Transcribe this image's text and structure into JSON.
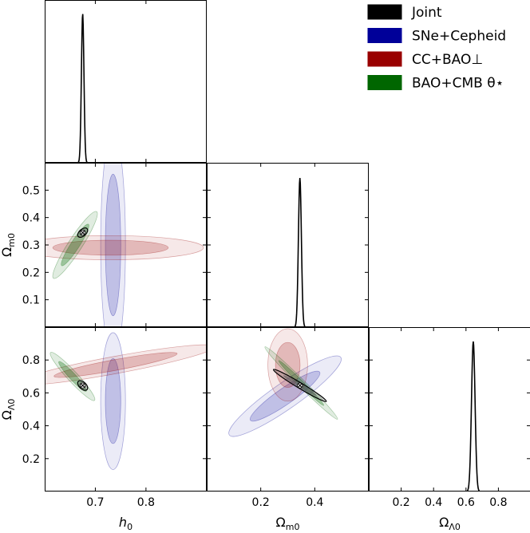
{
  "chart_data": {
    "type": "corner",
    "parameters": [
      "h0",
      "Ωm0",
      "ΩΛ0"
    ],
    "parameter_labels": {
      "h0": {
        "base": "h",
        "sub": "0"
      },
      "Om": {
        "base": "Ω",
        "sub": "m0"
      },
      "OL": {
        "base": "Ω",
        "sub": "Λ0"
      }
    },
    "axes": {
      "h0": {
        "range": [
          0.6,
          0.92
        ],
        "ticks": [
          0.7,
          0.8
        ],
        "tick_labels": [
          "0.7",
          "0.8"
        ]
      },
      "Om": {
        "range": [
          0.0,
          0.6
        ],
        "ticks": [
          0.1,
          0.2,
          0.3,
          0.4,
          0.5
        ],
        "tick_labels": [
          "0.1",
          "0.2",
          "0.3",
          "0.4",
          "0.5"
        ],
        "x_ticks": [
          0.2,
          0.4
        ],
        "x_tick_labels": [
          "0.2",
          "0.4"
        ]
      },
      "OL": {
        "range": [
          0.0,
          1.0
        ],
        "ticks": [
          0.2,
          0.4,
          0.6,
          0.8
        ],
        "tick_labels": [
          "0.2",
          "0.4",
          "0.6",
          "0.8"
        ]
      }
    },
    "legend": {
      "placement": "top-right",
      "entries": [
        {
          "label": "Joint",
          "color": "#000000"
        },
        {
          "label": "SNe+Cepheid",
          "color": "#000099"
        },
        {
          "label": "CC+BAO⊥",
          "color": "#990000"
        },
        {
          "label": "BAO+CMB θ⋆",
          "color": "#006600"
        }
      ]
    },
    "marginals": [
      {
        "param": "h0",
        "mean": 0.675,
        "sigma": 0.0025
      },
      {
        "param": "Om",
        "mean": 0.345,
        "sigma": 0.0055
      },
      {
        "param": "OL",
        "mean": 0.645,
        "sigma": 0.011
      }
    ],
    "contours": {
      "h0_Om": [
        {
          "dataset": "SNe+Cepheid",
          "mean": [
            0.735,
            0.3
          ],
          "sigma": [
            0.01,
            0.17
          ],
          "rho": 0
        },
        {
          "dataset": "CC+BAO⊥",
          "mean": [
            0.73,
            0.29
          ],
          "sigma": [
            0.075,
            0.018
          ],
          "rho": 0
        },
        {
          "dataset": "BAO+CMB θ⋆",
          "mean": [
            0.66,
            0.3
          ],
          "sigma": [
            0.018,
            0.05
          ],
          "rho": 0.93
        },
        {
          "dataset": "Joint",
          "mean": [
            0.675,
            0.345
          ],
          "sigma": [
            0.004,
            0.007
          ],
          "rho": 0.5
        }
      ],
      "h0_OL": [
        {
          "dataset": "SNe+Cepheid",
          "mean": [
            0.735,
            0.55
          ],
          "sigma": [
            0.01,
            0.17
          ],
          "rho": 0
        },
        {
          "dataset": "CC+BAO⊥",
          "mean": [
            0.74,
            0.77
          ],
          "sigma": [
            0.08,
            0.05
          ],
          "rho": 0.9
        },
        {
          "dataset": "BAO+CMB θ⋆",
          "mean": [
            0.655,
            0.7
          ],
          "sigma": [
            0.018,
            0.06
          ],
          "rho": -0.95
        },
        {
          "dataset": "Joint",
          "mean": [
            0.675,
            0.645
          ],
          "sigma": [
            0.004,
            0.012
          ],
          "rho": -0.5
        }
      ],
      "Om_OL": [
        {
          "dataset": "SNe+Cepheid",
          "mean": [
            0.29,
            0.58
          ],
          "sigma": [
            0.085,
            0.1
          ],
          "rho": 0.92
        },
        {
          "dataset": "CC+BAO⊥",
          "mean": [
            0.3,
            0.77
          ],
          "sigma": [
            0.03,
            0.09
          ],
          "rho": 0
        },
        {
          "dataset": "BAO+CMB θ⋆",
          "mean": [
            0.35,
            0.66
          ],
          "sigma": [
            0.055,
            0.09
          ],
          "rho": -0.99
        },
        {
          "dataset": "Joint",
          "mean": [
            0.345,
            0.645
          ],
          "sigma": [
            0.04,
            0.04
          ],
          "rho": -0.98
        }
      ]
    },
    "best_fit": {
      "h0": 0.675,
      "Om": 0.345,
      "OL": 0.645
    }
  }
}
